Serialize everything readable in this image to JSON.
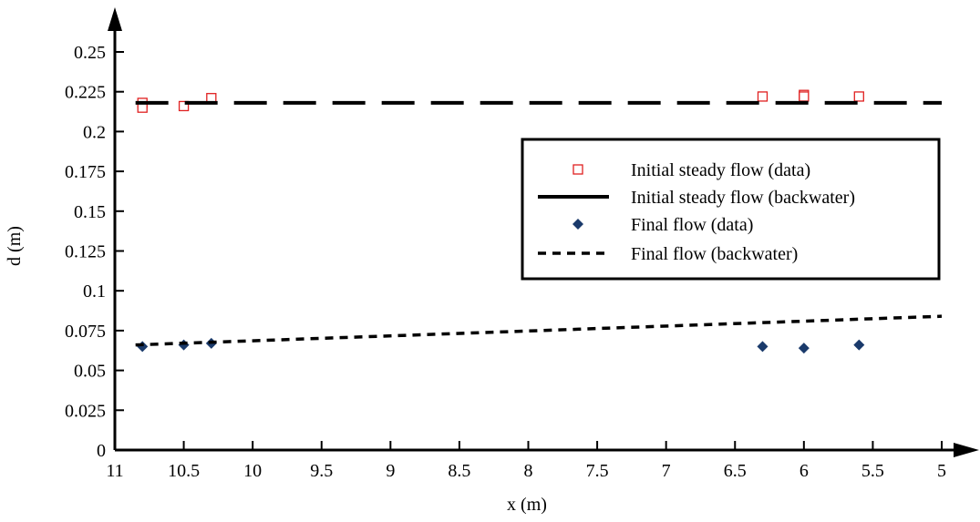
{
  "chart_data": {
    "type": "scatter",
    "xlabel": "x (m)",
    "ylabel": "d (m)",
    "x_reversed": true,
    "xlim": [
      11,
      5
    ],
    "ylim": [
      0,
      0.25
    ],
    "x_ticks": [
      11,
      10.5,
      10,
      9.5,
      9,
      8.5,
      8,
      7.5,
      7,
      6.5,
      6,
      5.5,
      5
    ],
    "y_ticks": [
      0,
      0.025,
      0.05,
      0.075,
      0.1,
      0.125,
      0.15,
      0.175,
      0.2,
      0.225,
      0.25
    ],
    "grid": false,
    "legend_position": "right",
    "series": [
      {
        "name": "Initial steady flow (data)",
        "style": "square-marker",
        "color": "#e02020",
        "points": [
          [
            10.8,
            0.218
          ],
          [
            10.8,
            0.215
          ],
          [
            10.5,
            0.216
          ],
          [
            10.3,
            0.221
          ],
          [
            6.3,
            0.222
          ],
          [
            6.0,
            0.223
          ],
          [
            6.0,
            0.222
          ],
          [
            5.6,
            0.222
          ]
        ]
      },
      {
        "name": "Initial steady flow (backwater)",
        "style": "long-dash-line",
        "color": "#000000",
        "points": [
          [
            10.85,
            0.218
          ],
          [
            5.0,
            0.218
          ]
        ]
      },
      {
        "name": "Final flow (data)",
        "style": "diamond-marker",
        "color": "#1a3a6b",
        "points": [
          [
            10.8,
            0.065
          ],
          [
            10.5,
            0.066
          ],
          [
            10.3,
            0.067
          ],
          [
            6.3,
            0.065
          ],
          [
            6.0,
            0.064
          ],
          [
            5.6,
            0.066
          ]
        ]
      },
      {
        "name": "Final flow (backwater)",
        "style": "short-dash-line",
        "color": "#000000",
        "points": [
          [
            10.85,
            0.066
          ],
          [
            5.0,
            0.084
          ]
        ]
      }
    ]
  }
}
